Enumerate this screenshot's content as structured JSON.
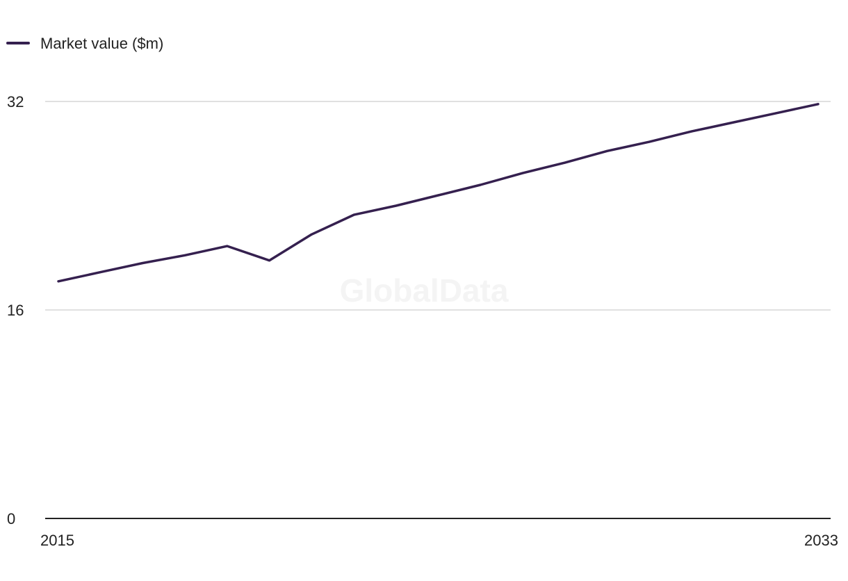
{
  "watermark": "GlobalData",
  "colors": {
    "series": "#35204f",
    "grid": "#d6d6d6",
    "axis": "#222222",
    "watermark": "#f4f4f4"
  },
  "chart_data": {
    "type": "line",
    "title": "",
    "xlabel": "",
    "ylabel": "",
    "x": [
      2015,
      2016,
      2017,
      2018,
      2019,
      2020,
      2021,
      2022,
      2023,
      2024,
      2025,
      2026,
      2027,
      2028,
      2029,
      2030,
      2031,
      2032,
      2033
    ],
    "series": [
      {
        "name": "Market value ($m)",
        "values": [
          18.2,
          18.9,
          19.6,
          20.2,
          20.9,
          19.8,
          21.8,
          23.3,
          24.0,
          24.8,
          25.6,
          26.5,
          27.3,
          28.2,
          28.9,
          29.7,
          30.4,
          31.1,
          31.8
        ]
      }
    ],
    "xlim": [
      2015,
      2033
    ],
    "ylim": [
      0,
      32
    ],
    "yticks": [
      0,
      16,
      32
    ],
    "xtick_labels": [
      "2015",
      "2033"
    ],
    "grid": true,
    "legend_position": "top-left"
  }
}
